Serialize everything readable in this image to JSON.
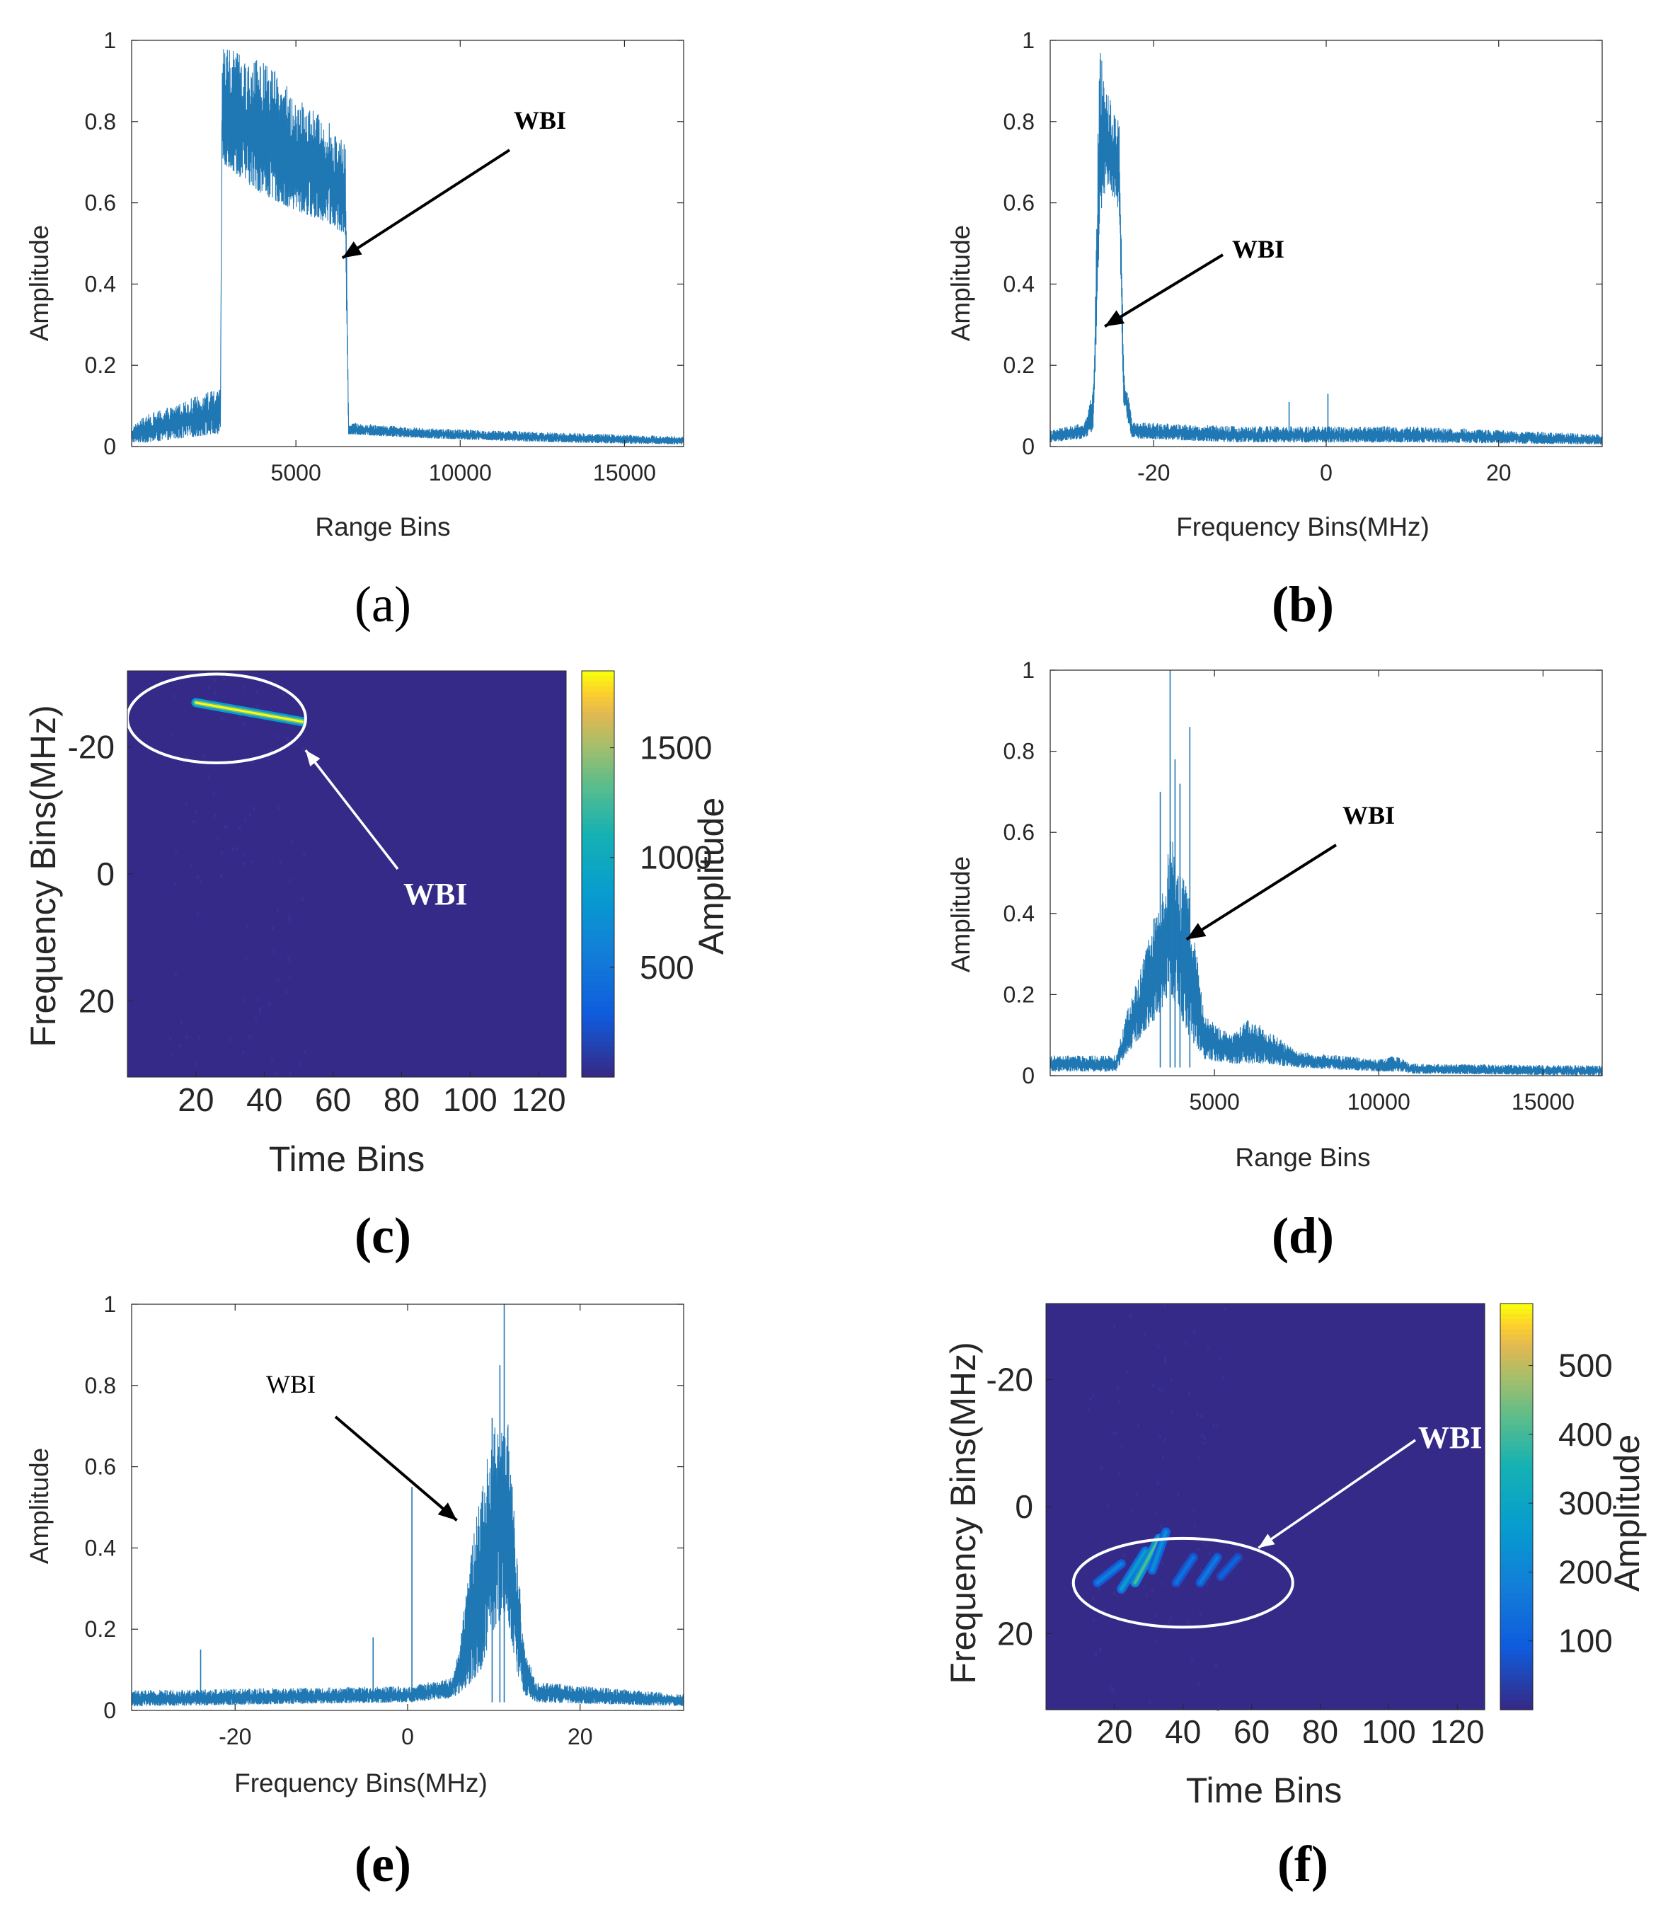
{
  "colors": {
    "signal": "#1f77b4",
    "heat_bg": "#352a87",
    "axis": "#262626",
    "annotation_dark": "#000000",
    "annotation_light": "#ffffff"
  },
  "chart_data": [
    {
      "id": "a",
      "type": "line",
      "panel_label": "(a)",
      "xlabel": "Range Bins",
      "ylabel": "Amplitude",
      "xlim": [
        0,
        16800
      ],
      "ylim": [
        0,
        1
      ],
      "xticks": [
        5000,
        10000,
        15000
      ],
      "yticks": [
        0,
        0.2,
        0.4,
        0.6,
        0.8,
        1
      ],
      "xtick_labels": [
        "5000",
        "10000",
        "15000"
      ],
      "ytick_labels": [
        "0",
        "0.2",
        "0.4",
        "0.6",
        "0.8",
        "1"
      ],
      "annotation": {
        "text": "WBI",
        "x": 6500,
        "y": 0.46
      },
      "envelope": [
        {
          "x": 0,
          "low": 0.01,
          "high": 0.05
        },
        {
          "x": 500,
          "low": 0.01,
          "high": 0.08
        },
        {
          "x": 1500,
          "low": 0.02,
          "high": 0.11
        },
        {
          "x": 2500,
          "low": 0.03,
          "high": 0.14
        },
        {
          "x": 2700,
          "low": 0.03,
          "high": 0.14
        },
        {
          "x": 2750,
          "low": 0.7,
          "high": 1.0
        },
        {
          "x": 3500,
          "low": 0.65,
          "high": 0.95
        },
        {
          "x": 4000,
          "low": 0.62,
          "high": 0.96
        },
        {
          "x": 5000,
          "low": 0.58,
          "high": 0.86
        },
        {
          "x": 6000,
          "low": 0.55,
          "high": 0.8
        },
        {
          "x": 6500,
          "low": 0.52,
          "high": 0.74
        },
        {
          "x": 6600,
          "low": 0.03,
          "high": 0.06
        },
        {
          "x": 9000,
          "low": 0.02,
          "high": 0.045
        },
        {
          "x": 13000,
          "low": 0.01,
          "high": 0.035
        },
        {
          "x": 16800,
          "low": 0.005,
          "high": 0.025
        }
      ]
    },
    {
      "id": "b",
      "type": "line",
      "panel_label": "(b)",
      "xlabel": "Frequency Bins(MHz)",
      "ylabel": "Amplitude",
      "xlim": [
        -32,
        32
      ],
      "ylim": [
        0,
        1
      ],
      "xticks": [
        -20,
        0,
        20
      ],
      "yticks": [
        0,
        0.2,
        0.4,
        0.6,
        0.8,
        1
      ],
      "xtick_labels": [
        "-20",
        "0",
        "20"
      ],
      "ytick_labels": [
        "0",
        "0.2",
        "0.4",
        "0.6",
        "0.8",
        "1"
      ],
      "annotation": {
        "text": "WBI",
        "x": -25.5,
        "y": 0.29
      },
      "spikes": [
        {
          "x": -4.3,
          "y": 0.11
        },
        {
          "x": 0.2,
          "y": 0.13
        }
      ],
      "envelope": [
        {
          "x": -32,
          "low": 0.01,
          "high": 0.04
        },
        {
          "x": -28,
          "low": 0.02,
          "high": 0.06
        },
        {
          "x": -27,
          "low": 0.04,
          "high": 0.15
        },
        {
          "x": -26.3,
          "low": 0.5,
          "high": 1.0
        },
        {
          "x": -25.5,
          "low": 0.65,
          "high": 0.88
        },
        {
          "x": -24,
          "low": 0.58,
          "high": 0.8
        },
        {
          "x": -23.5,
          "low": 0.1,
          "high": 0.2
        },
        {
          "x": -22.5,
          "low": 0.02,
          "high": 0.06
        },
        {
          "x": -10,
          "low": 0.01,
          "high": 0.05
        },
        {
          "x": 10,
          "low": 0.01,
          "high": 0.05
        },
        {
          "x": 32,
          "low": 0.005,
          "high": 0.03
        }
      ]
    },
    {
      "id": "c",
      "type": "heatmap",
      "panel_label": "(c)",
      "xlabel": "Time Bins",
      "ylabel": "Frequency Bins(MHz)",
      "colorbar_label": "Amplitude",
      "xlim": [
        0,
        128
      ],
      "ylim": [
        -32,
        32
      ],
      "xticks": [
        20,
        40,
        60,
        80,
        100,
        120
      ],
      "yticks": [
        -20,
        0,
        20
      ],
      "xtick_labels": [
        "20",
        "40",
        "60",
        "80",
        "100",
        "120"
      ],
      "ytick_labels": [
        "-20",
        "0",
        "20"
      ],
      "clim": [
        0,
        1850
      ],
      "cticks": [
        500,
        1000,
        1500
      ],
      "ctick_labels": [
        "500",
        "1000",
        "1500"
      ],
      "streaks": [
        {
          "t0": 20,
          "f0": -27,
          "t1": 51,
          "f1": -24,
          "amp": 1850
        }
      ],
      "ellipse": {
        "t": 26,
        "f": -24.5,
        "rt": 26,
        "rf": 7
      },
      "annotation": {
        "text": "WBI",
        "x": 52,
        "y": -19.5
      }
    },
    {
      "id": "d",
      "type": "line",
      "panel_label": "(d)",
      "xlabel": "Range Bins",
      "ylabel": "Amplitude",
      "xlim": [
        0,
        16800
      ],
      "ylim": [
        0,
        1
      ],
      "xticks": [
        5000,
        10000,
        15000
      ],
      "yticks": [
        0,
        0.2,
        0.4,
        0.6,
        0.8,
        1
      ],
      "xtick_labels": [
        "5000",
        "10000",
        "15000"
      ],
      "ytick_labels": [
        "0",
        "0.2",
        "0.4",
        "0.6",
        "0.8",
        "1"
      ],
      "annotation": {
        "text": "WBI",
        "x": 4100,
        "y": 0.33
      },
      "spikes": [
        {
          "x": 3650,
          "y": 1.0
        },
        {
          "x": 3800,
          "y": 0.78
        },
        {
          "x": 4250,
          "y": 0.86
        },
        {
          "x": 3350,
          "y": 0.7
        },
        {
          "x": 3950,
          "y": 0.72
        }
      ],
      "envelope": [
        {
          "x": 0,
          "low": 0.01,
          "high": 0.05
        },
        {
          "x": 2000,
          "low": 0.01,
          "high": 0.05
        },
        {
          "x": 2300,
          "low": 0.05,
          "high": 0.15
        },
        {
          "x": 2800,
          "low": 0.1,
          "high": 0.28
        },
        {
          "x": 3300,
          "low": 0.15,
          "high": 0.45
        },
        {
          "x": 3700,
          "low": 0.2,
          "high": 0.6
        },
        {
          "x": 4200,
          "low": 0.1,
          "high": 0.45
        },
        {
          "x": 4700,
          "low": 0.04,
          "high": 0.15
        },
        {
          "x": 5500,
          "low": 0.03,
          "high": 0.1
        },
        {
          "x": 6000,
          "low": 0.03,
          "high": 0.14
        },
        {
          "x": 6500,
          "low": 0.03,
          "high": 0.12
        },
        {
          "x": 7500,
          "low": 0.02,
          "high": 0.06
        },
        {
          "x": 10000,
          "low": 0.01,
          "high": 0.04
        },
        {
          "x": 10500,
          "low": 0.01,
          "high": 0.05
        },
        {
          "x": 11000,
          "low": 0.005,
          "high": 0.03
        },
        {
          "x": 16800,
          "low": 0.0,
          "high": 0.025
        }
      ]
    },
    {
      "id": "e",
      "type": "line",
      "panel_label": "(e)",
      "xlabel": "Frequency Bins(MHz)",
      "ylabel": "Amplitude",
      "xlim": [
        -32,
        32
      ],
      "ylim": [
        0,
        1
      ],
      "xticks": [
        -20,
        0,
        20
      ],
      "yticks": [
        0,
        0.2,
        0.4,
        0.6,
        0.8,
        1
      ],
      "xtick_labels": [
        "-20",
        "0",
        "20"
      ],
      "ytick_labels": [
        "0",
        "0.2",
        "0.4",
        "0.6",
        "0.8",
        "1"
      ],
      "annotation": {
        "text": "WBI",
        "x": 6,
        "y": 0.46
      },
      "spikes": [
        {
          "x": -24,
          "y": 0.15
        },
        {
          "x": -4,
          "y": 0.18
        },
        {
          "x": 0.5,
          "y": 0.55
        },
        {
          "x": 11.2,
          "y": 1.0
        },
        {
          "x": 10.7,
          "y": 0.85
        },
        {
          "x": 9.8,
          "y": 0.72
        }
      ],
      "envelope": [
        {
          "x": -32,
          "low": 0.01,
          "high": 0.05
        },
        {
          "x": 0,
          "low": 0.02,
          "high": 0.06
        },
        {
          "x": 5,
          "low": 0.03,
          "high": 0.08
        },
        {
          "x": 6,
          "low": 0.04,
          "high": 0.15
        },
        {
          "x": 7,
          "low": 0.06,
          "high": 0.35
        },
        {
          "x": 8.5,
          "low": 0.1,
          "high": 0.55
        },
        {
          "x": 10,
          "low": 0.2,
          "high": 0.7
        },
        {
          "x": 11.5,
          "low": 0.25,
          "high": 0.75
        },
        {
          "x": 12.5,
          "low": 0.1,
          "high": 0.45
        },
        {
          "x": 13.5,
          "low": 0.04,
          "high": 0.15
        },
        {
          "x": 15,
          "low": 0.02,
          "high": 0.07
        },
        {
          "x": 32,
          "low": 0.01,
          "high": 0.04
        }
      ]
    },
    {
      "id": "f",
      "type": "heatmap",
      "panel_label": "(f)",
      "xlabel": "Time Bins",
      "ylabel": "Frequency Bins(MHz)",
      "colorbar_label": "Amplitude",
      "xlim": [
        0,
        128
      ],
      "ylim": [
        -32,
        32
      ],
      "xticks": [
        20,
        40,
        60,
        80,
        100,
        120
      ],
      "yticks": [
        -20,
        0,
        20
      ],
      "xtick_labels": [
        "20",
        "40",
        "60",
        "80",
        "100",
        "120"
      ],
      "ytick_labels": [
        "-20",
        "0",
        "20"
      ],
      "clim": [
        0,
        590
      ],
      "cticks": [
        100,
        200,
        300,
        400,
        500
      ],
      "ctick_labels": [
        "100",
        "200",
        "300",
        "400",
        "500"
      ],
      "streaks": [
        {
          "t0": 15,
          "f0": 12,
          "t1": 22,
          "f1": 9,
          "amp": 190
        },
        {
          "t0": 22,
          "f0": 13,
          "t1": 29,
          "f1": 7,
          "amp": 280
        },
        {
          "t0": 26,
          "f0": 12,
          "t1": 33,
          "f1": 5,
          "amp": 420
        },
        {
          "t0": 31,
          "f0": 10,
          "t1": 35,
          "f1": 4,
          "amp": 230
        },
        {
          "t0": 38,
          "f0": 12,
          "t1": 43,
          "f1": 8,
          "amp": 150
        },
        {
          "t0": 45,
          "f0": 12,
          "t1": 50,
          "f1": 8,
          "amp": 170
        },
        {
          "t0": 51,
          "f0": 11,
          "t1": 56,
          "f1": 8,
          "amp": 110
        }
      ],
      "ellipse": {
        "t": 40,
        "f": 12,
        "rt": 32,
        "rf": 7
      },
      "annotation": {
        "text": "WBI",
        "x": 62,
        "y": 6.5
      }
    }
  ]
}
